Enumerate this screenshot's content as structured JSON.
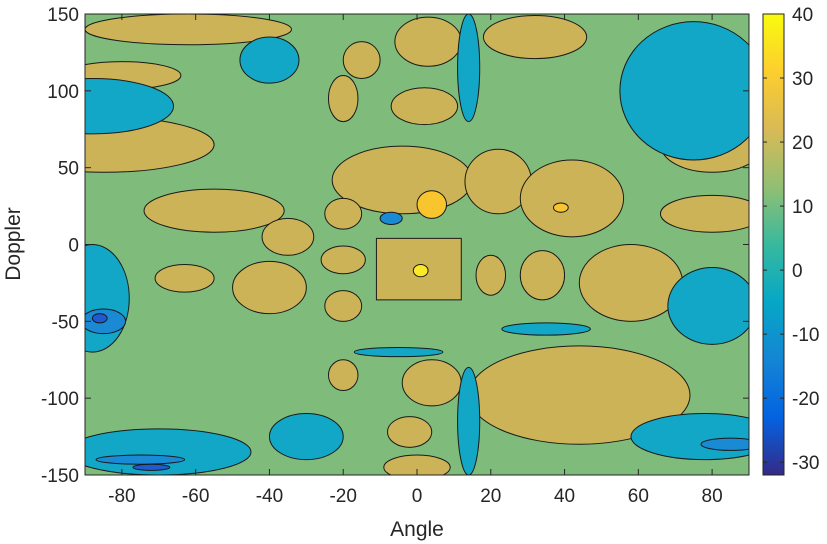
{
  "chart_data": {
    "type": "heatmap",
    "plot_style": "filled-contour",
    "xlabel": "Angle",
    "ylabel": "Doppler",
    "xlim": [
      -90,
      90
    ],
    "ylim": [
      -150,
      150
    ],
    "x_ticks": [
      -80,
      -60,
      -40,
      -20,
      0,
      20,
      40,
      60,
      80
    ],
    "x_tick_labels": [
      "-80",
      "-60",
      "-40",
      "-20",
      "0",
      "20",
      "40",
      "60",
      "80"
    ],
    "y_ticks": [
      150,
      100,
      50,
      0,
      -50,
      -100,
      -150
    ],
    "y_tick_labels": [
      "150",
      "100",
      "50",
      "0",
      "-50",
      "-100",
      "-150"
    ],
    "contour_levels": [
      -30,
      -20,
      -10,
      0,
      10,
      20,
      30,
      40
    ],
    "background_level_value": 10,
    "colorbar": {
      "colormap": "parula",
      "range": [
        -32,
        40
      ],
      "ticks": [
        40,
        30,
        20,
        10,
        0,
        -10,
        -20,
        -30
      ],
      "tick_labels": [
        "40",
        "30",
        "20",
        "10",
        "0",
        "-10",
        "-20",
        "-30"
      ]
    },
    "colors": {
      "level_-30": "#2a2f8a",
      "level_-20": "#1f5bd0",
      "level_-10": "#1a8ad4",
      "level_0": "#12a7c6",
      "level_10": "#7fbb7a",
      "level_20": "#cdb357",
      "level_30": "#f8c52f",
      "level_40": "#f9e926",
      "contour_line": "#1a1a1a"
    },
    "regions": [
      {
        "level": 30,
        "x": [
          -9,
          10,
          10,
          -9
        ],
        "y": [
          2,
          2,
          -33,
          -33
        ]
      },
      {
        "level": 20,
        "x": [
          -11,
          12,
          12,
          -11
        ],
        "y": [
          4,
          4,
          -36,
          -36
        ]
      },
      {
        "level": 40,
        "center": [
          1,
          -17
        ],
        "radius": [
          2,
          4
        ]
      },
      {
        "level": 20,
        "center": [
          -4,
          42
        ],
        "radius": [
          19,
          22
        ]
      },
      {
        "level": 30,
        "center": [
          4,
          26
        ],
        "radius": [
          4,
          9
        ]
      },
      {
        "level": 20,
        "center": [
          22,
          41
        ],
        "radius": [
          9,
          21
        ]
      },
      {
        "level": 20,
        "center": [
          42,
          30
        ],
        "radius": [
          14,
          25
        ]
      },
      {
        "level": 30,
        "center": [
          39,
          24
        ],
        "radius": [
          2,
          3
        ]
      },
      {
        "level": 20,
        "center": [
          58,
          -25
        ],
        "radius": [
          14,
          25
        ]
      },
      {
        "level": 20,
        "center": [
          -85,
          65
        ],
        "radius": [
          30,
          18
        ]
      },
      {
        "level": 20,
        "center": [
          -55,
          22
        ],
        "radius": [
          19,
          14
        ]
      },
      {
        "level": 20,
        "center": [
          -62,
          140
        ],
        "radius": [
          28,
          10
        ]
      },
      {
        "level": 20,
        "center": [
          -80,
          110
        ],
        "radius": [
          16,
          9
        ]
      },
      {
        "level": 20,
        "center": [
          -35,
          5
        ],
        "radius": [
          7,
          12
        ]
      },
      {
        "level": 20,
        "center": [
          -40,
          -28
        ],
        "radius": [
          10,
          17
        ]
      },
      {
        "level": 20,
        "center": [
          -63,
          -22
        ],
        "radius": [
          8,
          9
        ]
      },
      {
        "level": 20,
        "center": [
          -20,
          -10
        ],
        "radius": [
          6,
          9
        ]
      },
      {
        "level": 20,
        "center": [
          -20,
          20
        ],
        "radius": [
          5,
          10
        ]
      },
      {
        "level": 20,
        "center": [
          -20,
          -40
        ],
        "radius": [
          5,
          10
        ]
      },
      {
        "level": 20,
        "center": [
          20,
          -20
        ],
        "radius": [
          4,
          13
        ]
      },
      {
        "level": 20,
        "center": [
          34,
          -20
        ],
        "radius": [
          6,
          16
        ]
      },
      {
        "level": 20,
        "center": [
          44,
          -98
        ],
        "radius": [
          30,
          32
        ]
      },
      {
        "level": 20,
        "center": [
          4,
          -90
        ],
        "radius": [
          8,
          15
        ]
      },
      {
        "level": 20,
        "center": [
          -20,
          -85
        ],
        "radius": [
          4,
          10
        ]
      },
      {
        "level": 20,
        "center": [
          -2,
          -122
        ],
        "radius": [
          6,
          10
        ]
      },
      {
        "level": 20,
        "center": [
          0,
          -145
        ],
        "radius": [
          9,
          8
        ]
      },
      {
        "level": 20,
        "center": [
          2,
          90
        ],
        "radius": [
          9,
          12
        ]
      },
      {
        "level": 20,
        "center": [
          3,
          132
        ],
        "radius": [
          9,
          16
        ]
      },
      {
        "level": 20,
        "center": [
          -15,
          120
        ],
        "radius": [
          5,
          12
        ]
      },
      {
        "level": 20,
        "center": [
          -20,
          95
        ],
        "radius": [
          4,
          15
        ]
      },
      {
        "level": 20,
        "center": [
          32,
          135
        ],
        "radius": [
          14,
          14
        ]
      },
      {
        "level": 20,
        "center": [
          80,
          65
        ],
        "radius": [
          14,
          18
        ]
      },
      {
        "level": 20,
        "center": [
          80,
          20
        ],
        "radius": [
          14,
          12
        ]
      },
      {
        "level": 0,
        "center": [
          -88,
          90
        ],
        "radius": [
          22,
          18
        ]
      },
      {
        "level": 0,
        "center": [
          -88,
          -35
        ],
        "radius": [
          10,
          35
        ]
      },
      {
        "level": 0,
        "center": [
          -70,
          -135
        ],
        "radius": [
          25,
          15
        ]
      },
      {
        "level": 0,
        "center": [
          75,
          100
        ],
        "radius": [
          20,
          45
        ]
      },
      {
        "level": 0,
        "center": [
          80,
          -40
        ],
        "radius": [
          12,
          25
        ]
      },
      {
        "level": 0,
        "center": [
          78,
          -125
        ],
        "radius": [
          20,
          15
        ]
      },
      {
        "level": 0,
        "center": [
          14,
          115
        ],
        "radius": [
          3,
          35
        ]
      },
      {
        "level": 0,
        "center": [
          14,
          -115
        ],
        "radius": [
          3,
          35
        ]
      },
      {
        "level": 0,
        "center": [
          -30,
          -125
        ],
        "radius": [
          10,
          15
        ]
      },
      {
        "level": 0,
        "center": [
          -40,
          120
        ],
        "radius": [
          8,
          15
        ]
      },
      {
        "level": 0,
        "center": [
          -5,
          -70
        ],
        "radius": [
          12,
          3
        ]
      },
      {
        "level": 0,
        "center": [
          35,
          -55
        ],
        "radius": [
          12,
          4
        ]
      },
      {
        "level": -10,
        "center": [
          -75,
          -140
        ],
        "radius": [
          12,
          3
        ]
      },
      {
        "level": -10,
        "center": [
          -85,
          -50
        ],
        "radius": [
          6,
          8
        ]
      },
      {
        "level": -10,
        "center": [
          85,
          -130
        ],
        "radius": [
          8,
          4
        ]
      },
      {
        "level": -10,
        "center": [
          -7,
          17
        ],
        "radius": [
          3,
          4
        ]
      },
      {
        "level": -20,
        "center": [
          -72,
          -145
        ],
        "radius": [
          5,
          2
        ]
      },
      {
        "level": -20,
        "center": [
          -86,
          -48
        ],
        "radius": [
          2,
          3
        ]
      }
    ]
  }
}
